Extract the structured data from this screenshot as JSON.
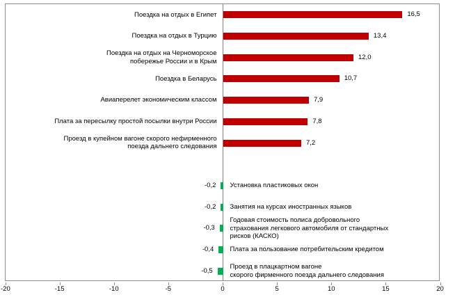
{
  "chart_data": {
    "type": "bar",
    "orientation": "horizontal",
    "title": "",
    "xlabel": "",
    "ylabel": "",
    "xlim": [
      -20,
      20
    ],
    "x_tick_values": [
      -20,
      -15,
      -10,
      -5,
      0,
      5,
      10,
      15,
      20
    ],
    "x_tick_labels": [
      "-20",
      "-15",
      "-10",
      "-5",
      "0",
      "5",
      "10",
      "15",
      "20"
    ],
    "grid": false,
    "legend": false,
    "decimal_separator": ",",
    "colors": {
      "positive_bar": "#c00000",
      "negative_bar": "#00b050",
      "plot_border": "#8c8c8c",
      "zero_axis": "#808080",
      "text": "#000000"
    },
    "empty_row_after_index": 6,
    "items": [
      {
        "label": "Поездка на отдых в Египет",
        "value": 16.5,
        "value_label": "16,5"
      },
      {
        "label": "Поездка на отдых в Турцию",
        "value": 13.4,
        "value_label": "13,4"
      },
      {
        "label": "Поездка на отдых на Черноморское\nпобережье России и в Крым",
        "value": 12.0,
        "value_label": "12,0"
      },
      {
        "label": "Поездка в Беларусь",
        "value": 10.7,
        "value_label": "10,7"
      },
      {
        "label": "Авиаперелет экономическим классом",
        "value": 7.9,
        "value_label": "7,9"
      },
      {
        "label": "Плата за пересылку простой посылки внутри России",
        "value": 7.8,
        "value_label": "7,8"
      },
      {
        "label": "Проезд в купейном вагоне скорого нефирменного\nпоезда дальнего следования",
        "value": 7.2,
        "value_label": "7,2"
      },
      {
        "label": "Установка пластиковых окон",
        "value": -0.2,
        "value_label": "-0,2"
      },
      {
        "label": "Занятия на курсах иностранных языков",
        "value": -0.2,
        "value_label": "-0,2"
      },
      {
        "label": "Годовая стоимость полиса добровольного\nстрахования легкового автомобиля от стандартных\nрисков (КАСКО)",
        "value": -0.3,
        "value_label": "-0,3"
      },
      {
        "label": "Плата за пользование потребительским кредитом",
        "value": -0.4,
        "value_label": "-0,4"
      },
      {
        "label": "Проезд в плацкартном вагоне\nскорого фирменного поезда дальнего следования",
        "value": -0.5,
        "value_label": "-0,5"
      }
    ]
  }
}
